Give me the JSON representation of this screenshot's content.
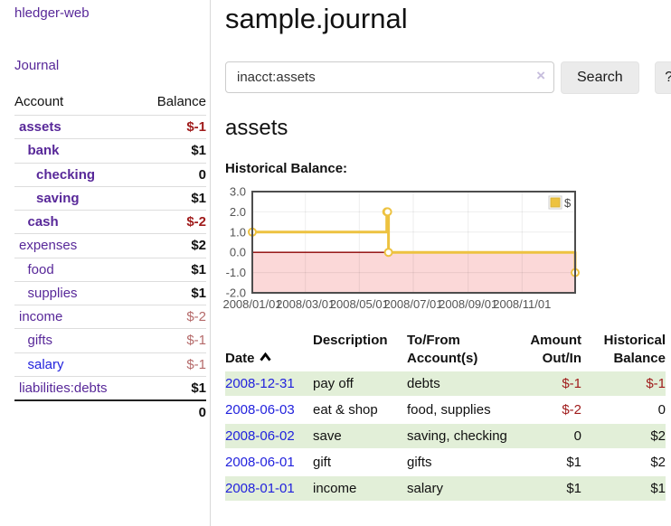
{
  "app": {
    "brand": "hledger-web"
  },
  "sidebar": {
    "nav": {
      "journal": "Journal"
    },
    "table_header": {
      "account": "Account",
      "balance": "Balance"
    },
    "accounts": [
      {
        "name": "assets",
        "indent": 1,
        "balance": "$-1",
        "bold": true,
        "neg": "strong"
      },
      {
        "name": "bank",
        "indent": 2,
        "balance": "$1",
        "bold": true,
        "neg": "none"
      },
      {
        "name": "checking",
        "indent": 3,
        "balance": "0",
        "bold": true,
        "neg": "none"
      },
      {
        "name": "saving",
        "indent": 3,
        "balance": "$1",
        "bold": true,
        "neg": "none"
      },
      {
        "name": "cash",
        "indent": 2,
        "balance": "$-2",
        "bold": true,
        "neg": "strong"
      },
      {
        "name": "expenses",
        "indent": 1,
        "balance": "$2",
        "bold": false,
        "neg": "none"
      },
      {
        "name": "food",
        "indent": 2,
        "balance": "$1",
        "bold": false,
        "neg": "none"
      },
      {
        "name": "supplies",
        "indent": 2,
        "balance": "$1",
        "bold": false,
        "neg": "none"
      },
      {
        "name": "income",
        "indent": 1,
        "balance": "$-2",
        "bold": false,
        "neg": "muted"
      },
      {
        "name": "gifts",
        "indent": 2,
        "balance": "$-1",
        "bold": false,
        "neg": "muted"
      },
      {
        "name": "salary",
        "indent": 2,
        "balance": "$-1",
        "bold": false,
        "neg": "muted",
        "blue": true
      },
      {
        "name": "liabilities:debts",
        "indent": 1,
        "balance": "$1",
        "bold": false,
        "neg": "none"
      }
    ],
    "total": "0"
  },
  "main": {
    "title": "sample.journal",
    "search": {
      "value": "inacct:assets",
      "clear": "×",
      "button": "Search",
      "help": "?"
    },
    "account_heading": "assets",
    "chart_title": "Historical Balance:"
  },
  "chart_data": {
    "type": "line",
    "step": true,
    "title": "Historical Balance:",
    "series_name": "$",
    "legend_position": "top-right",
    "x": [
      "2008-01-01",
      "2008-06-01",
      "2008-06-02",
      "2008-06-03",
      "2008-12-31"
    ],
    "y": [
      1,
      2,
      2,
      0,
      -1
    ],
    "x_ticks": [
      "2008/01/01",
      "2008/03/01",
      "2008/05/01",
      "2008/07/01",
      "2008/09/01",
      "2008/11/01"
    ],
    "y_ticks": [
      "3.0",
      "2.0",
      "1.0",
      "0.0",
      "-1.0",
      "-2.0"
    ],
    "xlim": [
      "2008-01-01",
      "2008-12-31"
    ],
    "ylim": [
      -2,
      3
    ],
    "grid": true,
    "colors": {
      "line": "#edc240",
      "line_edge": "#d7b13a",
      "marker_fill": "#ffffff",
      "below_zero_fill": "#fbd8d8",
      "zero_line": "#8b0000",
      "grid": "rgba(0,0,0,0.07)",
      "border": "#4d4d4d",
      "tick_label": "#545454"
    }
  },
  "register": {
    "columns": [
      {
        "label": "Date",
        "sorted": "ascending"
      },
      {
        "label": "Description"
      },
      {
        "label": "To/From\nAccount(s)"
      },
      {
        "label": "Amount\nOut/In"
      },
      {
        "label": "Historical\nBalance"
      }
    ],
    "rows": [
      {
        "date": "2008-12-31",
        "description": "pay off",
        "accounts": "debts",
        "amount": "$-1",
        "amount_negative": true,
        "balance": "$-1",
        "balance_negative": true
      },
      {
        "date": "2008-06-03",
        "description": "eat & shop",
        "accounts": "food, supplies",
        "amount": "$-2",
        "amount_negative": true,
        "balance": "0",
        "balance_negative": false
      },
      {
        "date": "2008-06-02",
        "description": "save",
        "accounts": "saving, checking",
        "amount": "0",
        "amount_negative": false,
        "balance": "$2",
        "balance_negative": false
      },
      {
        "date": "2008-06-01",
        "description": "gift",
        "accounts": "gifts",
        "amount": "$1",
        "amount_negative": false,
        "balance": "$2",
        "balance_negative": false
      },
      {
        "date": "2008-01-01",
        "description": "income",
        "accounts": "salary",
        "amount": "$1",
        "amount_negative": false,
        "balance": "$1",
        "balance_negative": false
      }
    ]
  },
  "colors": {
    "link_purple": "#582899",
    "link_blue": "#2222dd",
    "negative": "#a01c1c",
    "negative_muted": "#b56a6a",
    "row_green": "#e2efd8"
  }
}
